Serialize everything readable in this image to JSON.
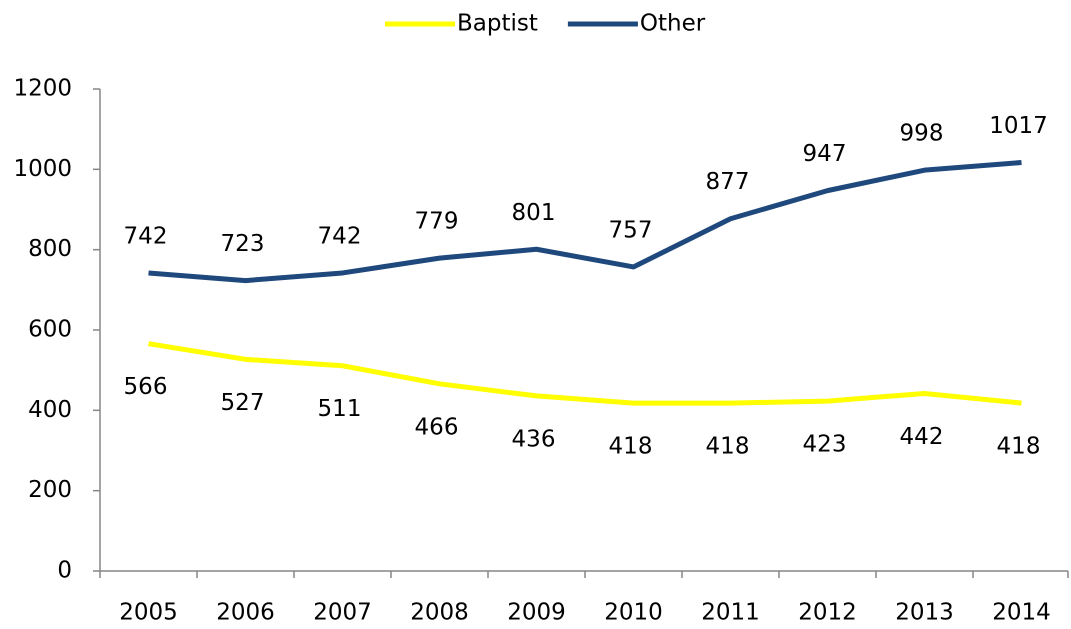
{
  "chart_data": {
    "type": "line",
    "categories": [
      "2005",
      "2006",
      "2007",
      "2008",
      "2009",
      "2010",
      "2011",
      "2012",
      "2013",
      "2014"
    ],
    "series": [
      {
        "name": "Baptist",
        "color": "#ffff00",
        "values": [
          566,
          527,
          511,
          466,
          436,
          418,
          418,
          423,
          442,
          418
        ]
      },
      {
        "name": "Other",
        "color": "#1f497d",
        "values": [
          742,
          723,
          742,
          779,
          801,
          757,
          877,
          947,
          998,
          1017
        ]
      }
    ],
    "ylim": [
      0,
      1200
    ],
    "yticks": [
      0,
      200,
      400,
      600,
      800,
      1000,
      1200
    ],
    "legend": "top",
    "grid": false
  }
}
